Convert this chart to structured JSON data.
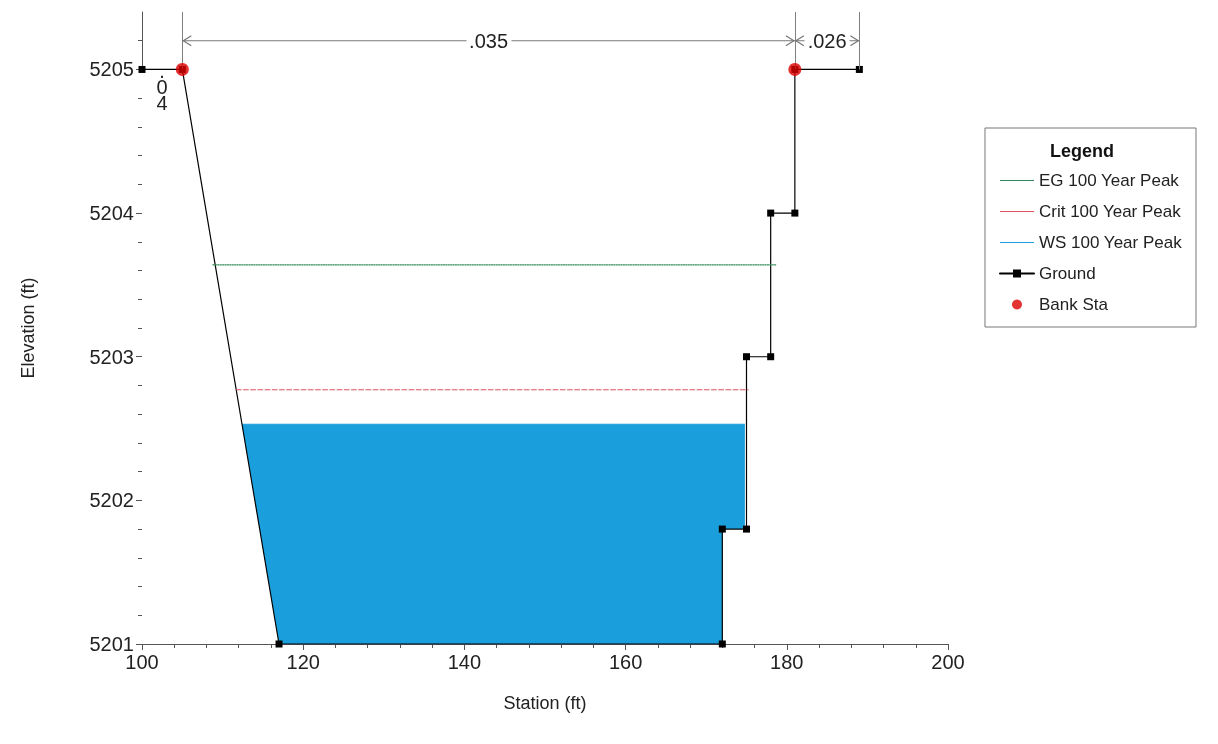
{
  "chart_data": {
    "type": "line",
    "xlabel": "Station (ft)",
    "ylabel": "Elevation (ft)",
    "legend_title": "Legend",
    "legend": "right",
    "grid": false,
    "xlim": [
      100,
      200
    ],
    "xticks": [
      100,
      120,
      140,
      160,
      180,
      200
    ],
    "ylim": [
      5201,
      5205.4
    ],
    "yticks": [
      5201,
      5202,
      5203,
      5204,
      5205
    ],
    "series": [
      {
        "name": "EG 100 Year Peak",
        "color": "#2e8b57",
        "line_style": "dotted",
        "marker": "none",
        "x": [
          108.8,
          178.7
        ],
        "values": [
          5203.64,
          5203.64
        ]
      },
      {
        "name": "Crit 100 Year Peak",
        "color": "#e05060",
        "line_style": "dashed",
        "marker": "none",
        "x": [
          111.7,
          175.2
        ],
        "values": [
          5202.77,
          5202.77
        ]
      },
      {
        "name": "WS 100 Year Peak",
        "type": "area",
        "color": "#1a9fdc",
        "line_style": "solid",
        "marker": "none",
        "x": [
          112.4,
          174.8
        ],
        "values": [
          5202.53,
          5202.53
        ]
      },
      {
        "name": "Ground",
        "color": "#000000",
        "line_style": "solid",
        "marker": "square",
        "x": [
          100,
          105,
          117,
          172,
          172,
          175,
          175,
          178,
          178,
          181,
          181,
          189
        ],
        "values": [
          5205,
          5205,
          5201,
          5201,
          5201.8,
          5201.8,
          5203,
          5203,
          5204,
          5204,
          5205,
          5205
        ]
      },
      {
        "name": "Bank Sta",
        "type": "scatter",
        "color": "#dd0000",
        "marker": "circle",
        "x": [
          105,
          181
        ],
        "values": [
          5205,
          5205
        ]
      }
    ],
    "ref_lines": [
      {
        "axis": "x",
        "value": 105,
        "color": "#808080"
      },
      {
        "axis": "x",
        "value": 181,
        "color": "#808080"
      },
      {
        "axis": "x",
        "value": 189,
        "color": "#808080"
      }
    ],
    "annotations": [
      ".04",
      ".035",
      ".026"
    ]
  }
}
